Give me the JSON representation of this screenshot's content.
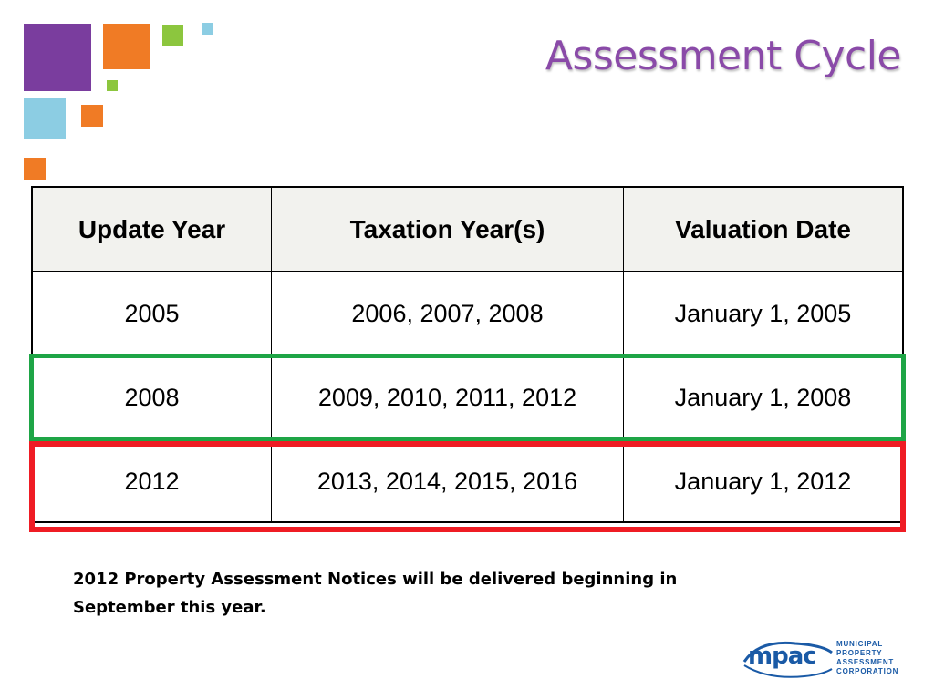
{
  "title": "Assessment Cycle",
  "table": {
    "headers": [
      "Update Year",
      "Taxation Year(s)",
      "Valuation Date"
    ],
    "rows": [
      [
        "2005",
        "2006, 2007, 2008",
        "January 1, 2005"
      ],
      [
        "2008",
        "2009, 2010, 2011, 2012",
        "January 1, 2008"
      ],
      [
        "2012",
        "2013, 2014, 2015, 2016",
        "January 1, 2012"
      ]
    ]
  },
  "note": "2012 Property Assessment Notices will be delivered beginning in September this year.",
  "logo": {
    "mark": "mpac",
    "lines": [
      "MUNICIPAL",
      "PROPERTY",
      "ASSESSMENT",
      "CORPORATION"
    ]
  },
  "colors": {
    "title": "#8a4aa8",
    "highlight_green": "#1ea546",
    "highlight_red": "#ef1c24",
    "purple": "#7a3d9e",
    "orange": "#f07b25",
    "green": "#8cc63e",
    "light_blue": "#8ccde3"
  }
}
